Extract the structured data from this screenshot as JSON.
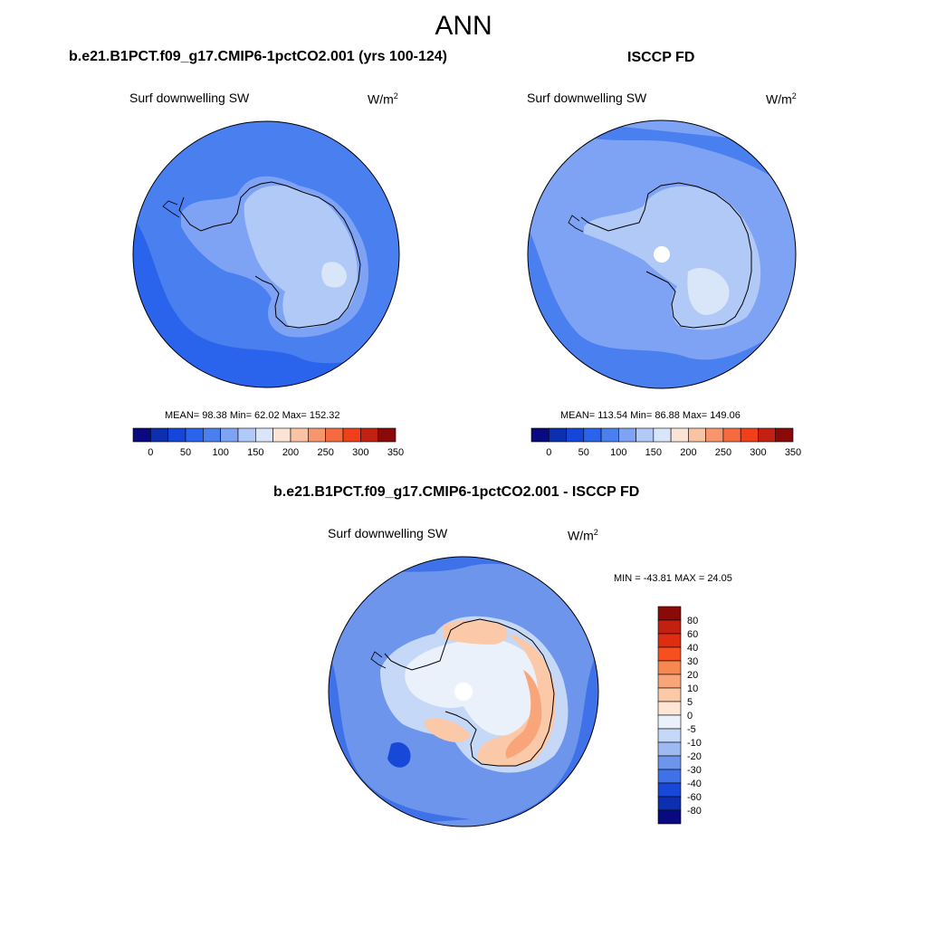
{
  "page": {
    "title": "ANN"
  },
  "panels": [
    {
      "title": "b.e21.B1PCT.f09_g17.CMIP6-1pctCO2.001 (yrs 100-124)",
      "field": "Surf downwelling SW",
      "units": "W/m",
      "units_sup": "2",
      "stats": "MEAN=  98.38  Min=  62.02  Max= 152.32",
      "stats_values": {
        "mean": 98.38,
        "min": 62.02,
        "max": 152.32
      }
    },
    {
      "title": "ISCCP FD",
      "field": "Surf downwelling SW",
      "units": "W/m",
      "units_sup": "2",
      "stats": "MEAN= 113.54  Min=  86.88  Max= 149.06",
      "stats_values": {
        "mean": 113.54,
        "min": 86.88,
        "max": 149.06
      }
    },
    {
      "title": "b.e21.B1PCT.f09_g17.CMIP6-1pctCO2.001 - ISCCP FD",
      "field": "Surf downwelling SW",
      "units": "W/m",
      "units_sup": "2",
      "stats": "MIN = -43.81 MAX =  24.05",
      "stats_values": {
        "min": -43.81,
        "max": 24.05
      }
    }
  ],
  "colorbars": {
    "abs": {
      "orientation": "horizontal",
      "tick_labels": [
        "0",
        "50",
        "100",
        "150",
        "200",
        "250",
        "300",
        "350"
      ],
      "colors": [
        "#0a0a80",
        "#0c2fb0",
        "#1447d8",
        "#2a63ec",
        "#4a7ff0",
        "#7fa3f4",
        "#b1c9f6",
        "#d9e6f9",
        "#fbe4d5",
        "#f9c3a4",
        "#f7966c",
        "#f56a3e",
        "#ef3f1b",
        "#c22010",
        "#8a0a0a"
      ]
    },
    "diff": {
      "orientation": "vertical",
      "tick_labels": [
        "80",
        "60",
        "40",
        "30",
        "20",
        "10",
        "5",
        "0",
        "-5",
        "-10",
        "-20",
        "-30",
        "-40",
        "-60",
        "-80"
      ],
      "colors_top_to_bottom": [
        "#8a0a0a",
        "#c22010",
        "#e02c10",
        "#f5501e",
        "#f7884f",
        "#f9a57a",
        "#fbc8a8",
        "#fde6d6",
        "#eaf1fb",
        "#c5d8f7",
        "#9dbaf2",
        "#6e95ec",
        "#3f72e8",
        "#1748d8",
        "#0c2fb0",
        "#0a0a80"
      ]
    }
  },
  "map_colors": {
    "abs_ocean": "#4a7ff0",
    "abs_ocean_dark": "#2a63ec",
    "abs_ice": "#b1c9f6",
    "abs_ice_light": "#d9e6f9",
    "abs_coast_band": "#7fa3f4",
    "diff_ocean": "#6e95ec",
    "diff_dark": "#3f72e8",
    "diff_darkest": "#1748d8",
    "diff_ice": "#c5d8f7",
    "diff_pale": "#eaf1fb",
    "diff_warm": "#fbc8a8",
    "diff_warmer": "#f9a57a",
    "missing": "#ffffff"
  }
}
